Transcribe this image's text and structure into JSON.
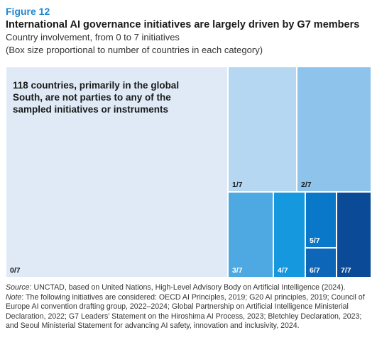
{
  "header": {
    "figure_label": "Figure 12",
    "title": "International AI governance initiatives are largely driven by G7 members",
    "subtitle": "Country involvement, from 0 to 7 initiatives",
    "subtitle2": "(Box size proportional to number of countries in each category)"
  },
  "colors": {
    "c0": "#dfeaf6",
    "c1": "#b6d7f1",
    "c2": "#8ec4ec",
    "c3": "#4ea8e2",
    "c4": "#1598de",
    "c5": "#0a78c8",
    "c6": "#0d66b8",
    "c7": "#0b4a96"
  },
  "chart_data": {
    "type": "treemap",
    "annotation": "118 countries, primarily in the global South, are not parties to any of the sampled initiatives or instruments",
    "categories": [
      "0/7",
      "1/7",
      "2/7",
      "3/7",
      "4/7",
      "5/7",
      "6/7",
      "7/7"
    ],
    "values": [
      118,
      20,
      20,
      8,
      5,
      5,
      3,
      7
    ]
  },
  "footer": {
    "source_label": "Source",
    "source_text": ": UNCTAD, based on United Nations, High-Level Advisory Body on Artificial Intelligence (2024).",
    "note_label": "Note",
    "note_text": ": The following initiatives are considered: OECD AI Principles, 2019; G20 AI principles, 2019; Council of Europe AI convention drafting group, 2022–2024; Global Partnership on Artificial Intelligence Ministerial Declaration, 2022; G7 Leaders’ Statement on the Hiroshima AI Process, 2023; Bletchley Declaration, 2023; and Seoul Ministerial Statement for advancing AI safety, innovation and inclusivity, 2024."
  }
}
